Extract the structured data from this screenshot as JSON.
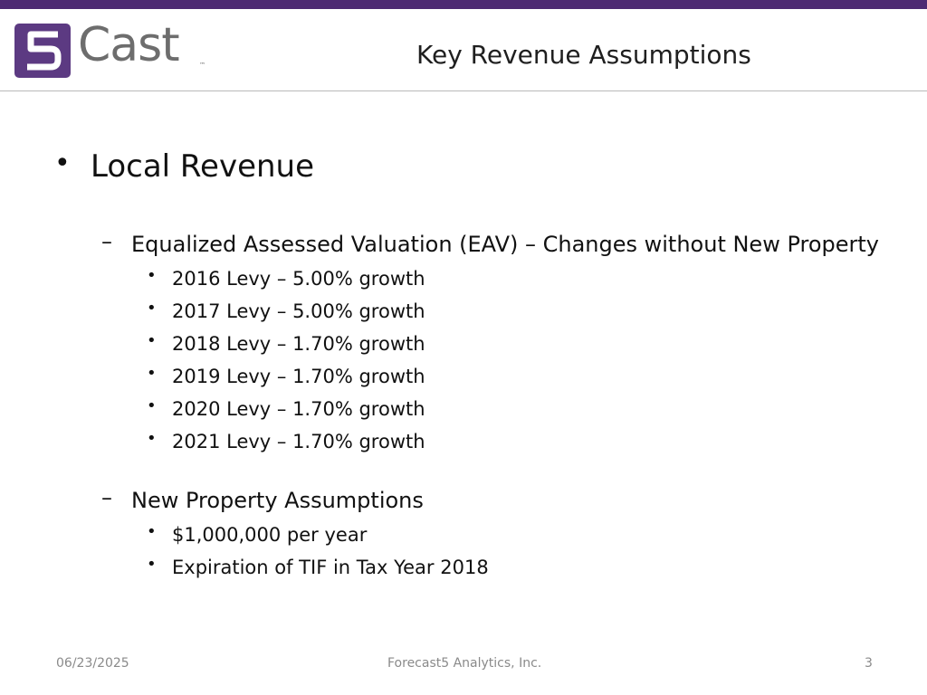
{
  "header": {
    "logo": {
      "mark_text": "5",
      "word": "Cast",
      "tm": "™"
    },
    "title": "Key Revenue Assumptions"
  },
  "content": {
    "level1": {
      "bullet": "•",
      "text": "Local Revenue"
    },
    "section1": {
      "dash": "–",
      "heading": "Equalized Assessed Valuation (EAV) – Changes without New Property",
      "items": [
        "2016 Levy – 5.00% growth",
        "2017 Levy – 5.00% growth",
        "2018 Levy – 1.70% growth",
        "2019 Levy – 1.70% growth",
        "2020 Levy – 1.70% growth",
        "2021 Levy – 1.70% growth"
      ]
    },
    "section2": {
      "dash": "–",
      "heading": "New Property Assumptions",
      "items": [
        "$1,000,000 per year",
        "Expiration of TIF in Tax Year 2018"
      ]
    },
    "bullet_glyph": "•"
  },
  "footer": {
    "date": "06/23/2025",
    "company": "Forecast5 Analytics, Inc.",
    "page": "3"
  },
  "colors": {
    "brand_purple": "#4e2a73",
    "logo_gray": "#6d6d6d",
    "footer_gray": "#8a8a8a"
  }
}
